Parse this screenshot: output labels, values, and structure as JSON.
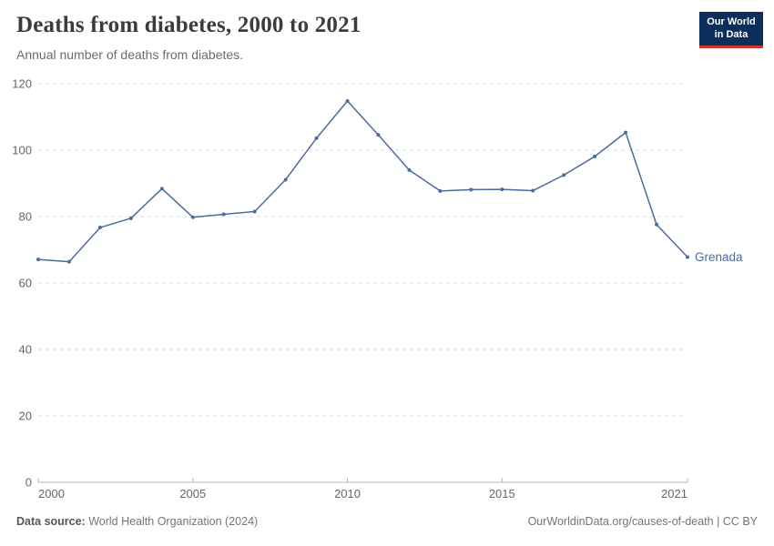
{
  "header": {
    "title": "Deaths from diabetes, 2000 to 2021",
    "subtitle": "Annual number of deaths from diabetes.",
    "logo": {
      "line1": "Our World",
      "line2": "in Data",
      "bg_color": "#0b2e5b",
      "accent_color": "#d0342c"
    }
  },
  "chart_data": {
    "type": "line",
    "title": "Deaths from diabetes, 2000 to 2021",
    "subtitle": "Annual number of deaths from diabetes.",
    "xlabel": "",
    "ylabel": "",
    "xlim": [
      2000,
      2021
    ],
    "ylim": [
      0,
      120
    ],
    "x_ticks": [
      2000,
      2005,
      2010,
      2015,
      2021
    ],
    "y_ticks": [
      0,
      20,
      40,
      60,
      80,
      100,
      120
    ],
    "grid": "horizontal-dashed",
    "legend_position": "end-of-line-label",
    "series": [
      {
        "name": "Grenada",
        "color": "#4c6b9e",
        "x": [
          2000,
          2001,
          2002,
          2003,
          2004,
          2005,
          2006,
          2007,
          2008,
          2009,
          2010,
          2011,
          2012,
          2013,
          2014,
          2015,
          2016,
          2017,
          2018,
          2019,
          2020,
          2021
        ],
        "values": [
          67.1,
          66.4,
          76.7,
          79.5,
          88.4,
          79.8,
          80.7,
          81.5,
          91.1,
          103.6,
          114.8,
          104.6,
          94.0,
          87.7,
          88.1,
          88.2,
          87.8,
          92.5,
          98.1,
          105.3,
          77.6,
          67.8
        ]
      }
    ],
    "colors": {
      "gridline": "#dedede",
      "axis": "#b8b8b8",
      "tick_text": "#666666"
    }
  },
  "footer": {
    "datasource_label": "Data source:",
    "datasource_value": " World Health Organization (2024)",
    "credit": "OurWorldinData.org/causes-of-death | CC BY"
  }
}
